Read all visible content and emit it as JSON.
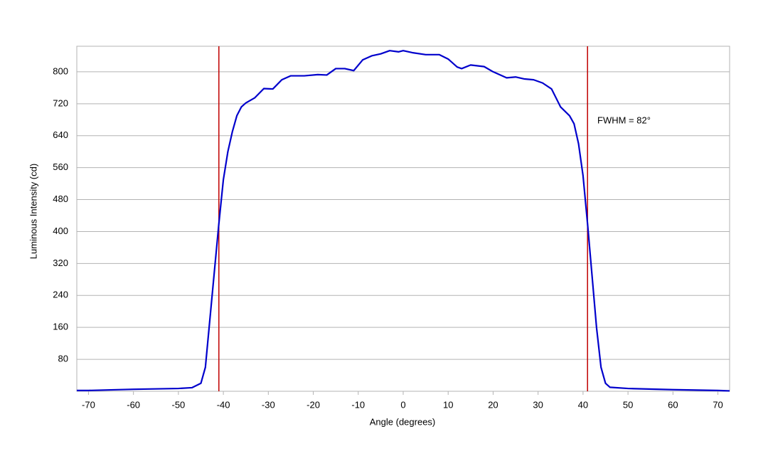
{
  "chart_data": {
    "type": "line",
    "x_label": "Angle (degrees)",
    "y_label": "Luminous Intensity (cd)",
    "annotation": "FWHM = 82°",
    "xlim": [
      -72.6,
      72.6
    ],
    "ylim": [
      0,
      864
    ],
    "xticks": [
      -70,
      -60,
      -50,
      -40,
      -30,
      -20,
      -10,
      0,
      10,
      20,
      30,
      40,
      50,
      60,
      70
    ],
    "yticks": [
      80,
      160,
      240,
      320,
      400,
      480,
      560,
      640,
      720,
      800
    ],
    "grid": true,
    "vlines": [
      -41,
      41
    ],
    "vline_color": "#c00000",
    "x": [
      -72.6,
      -70,
      -60,
      -50,
      -47,
      -45,
      -44,
      -43,
      -42,
      -41,
      -40,
      -39,
      -38,
      -37,
      -36,
      -35,
      -33,
      -31,
      -29,
      -27,
      -25,
      -22,
      -19,
      -17,
      -15,
      -13,
      -11,
      -9,
      -7,
      -5,
      -3,
      -1,
      0,
      2,
      5,
      8,
      10,
      12,
      13,
      15,
      18,
      20,
      23,
      25,
      27,
      29,
      31,
      33,
      35,
      37,
      38,
      39,
      40,
      41,
      42,
      43,
      44,
      45,
      46,
      50,
      60,
      70,
      72.6
    ],
    "series": [
      {
        "color": "#0000cc",
        "values": [
          2,
          2,
          5,
          7,
          9,
          20,
          60,
          180,
          300,
          420,
          530,
          600,
          650,
          690,
          712,
          722,
          735,
          758,
          757,
          780,
          790,
          790,
          793,
          792,
          808,
          808,
          803,
          830,
          840,
          845,
          853,
          850,
          853,
          848,
          843,
          843,
          832,
          812,
          808,
          817,
          813,
          800,
          785,
          787,
          782,
          780,
          772,
          757,
          712,
          690,
          670,
          620,
          540,
          420,
          290,
          160,
          60,
          20,
          10,
          7,
          4,
          2,
          1
        ]
      }
    ]
  }
}
